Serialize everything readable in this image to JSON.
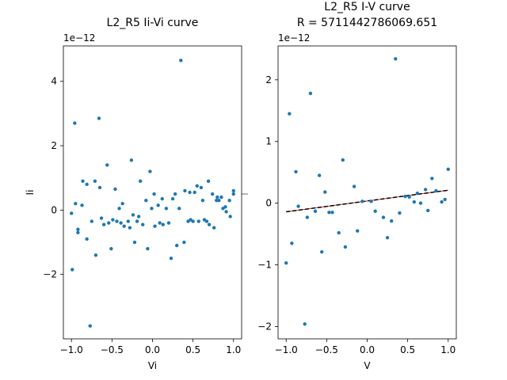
{
  "chart_data": [
    {
      "type": "scatter",
      "title": "L2_R5 Ii-Vi curve",
      "xlabel": "Vi",
      "ylabel": "Ii",
      "y_offset_label": "1e−12",
      "xlim": [
        -1.1,
        1.1
      ],
      "ylim": [
        -4.0,
        5.1
      ],
      "x_ticks": [
        -1.0,
        -0.5,
        0.0,
        0.5,
        1.0
      ],
      "x_tick_labels": [
        "−1.0",
        "−0.5",
        "0.0",
        "0.5",
        "1.0"
      ],
      "y_ticks": [
        -2,
        0,
        2,
        4
      ],
      "y_tick_labels": [
        "−2",
        "0",
        "2",
        "4"
      ],
      "marker_color": "#1f77b4",
      "points": [
        [
          -1.0,
          -0.1
        ],
        [
          -0.99,
          -1.85
        ],
        [
          -0.96,
          2.7
        ],
        [
          -0.95,
          0.2
        ],
        [
          -0.92,
          -0.6
        ],
        [
          -0.92,
          -0.7
        ],
        [
          -0.87,
          0.15
        ],
        [
          -0.86,
          0.9
        ],
        [
          -0.81,
          0.8
        ],
        [
          -0.81,
          -0.9
        ],
        [
          -0.77,
          -3.6
        ],
        [
          -0.75,
          -0.35
        ],
        [
          -0.71,
          0.9
        ],
        [
          -0.7,
          -1.4
        ],
        [
          -0.66,
          2.85
        ],
        [
          -0.65,
          0.7
        ],
        [
          -0.63,
          -0.25
        ],
        [
          -0.6,
          -0.45
        ],
        [
          -0.56,
          1.4
        ],
        [
          -0.54,
          -0.4
        ],
        [
          -0.51,
          -1.2
        ],
        [
          -0.49,
          -0.3
        ],
        [
          -0.46,
          0.65
        ],
        [
          -0.44,
          -0.35
        ],
        [
          -0.41,
          0.05
        ],
        [
          -0.39,
          -0.4
        ],
        [
          -0.37,
          0.2
        ],
        [
          -0.35,
          -0.5
        ],
        [
          -0.3,
          -0.35
        ],
        [
          -0.28,
          -0.55
        ],
        [
          -0.26,
          1.55
        ],
        [
          -0.24,
          -0.15
        ],
        [
          -0.22,
          -1.0
        ],
        [
          -0.19,
          -0.35
        ],
        [
          -0.17,
          -0.2
        ],
        [
          -0.15,
          0.9
        ],
        [
          -0.12,
          -0.45
        ],
        [
          -0.08,
          0.3
        ],
        [
          -0.06,
          -1.2
        ],
        [
          -0.03,
          1.2
        ],
        [
          -0.01,
          0.05
        ],
        [
          0.02,
          0.5
        ],
        [
          0.03,
          -0.5
        ],
        [
          0.07,
          0.15
        ],
        [
          0.09,
          -0.4
        ],
        [
          0.12,
          0.35
        ],
        [
          0.13,
          -0.45
        ],
        [
          0.17,
          0.05
        ],
        [
          0.2,
          -0.4
        ],
        [
          0.23,
          -1.5
        ],
        [
          0.25,
          0.35
        ],
        [
          0.28,
          0.5
        ],
        [
          0.3,
          -1.1
        ],
        [
          0.33,
          0.05
        ],
        [
          0.35,
          4.65
        ],
        [
          0.39,
          -1.0
        ],
        [
          0.4,
          0.6
        ],
        [
          0.44,
          -0.35
        ],
        [
          0.46,
          0.55
        ],
        [
          0.47,
          -0.3
        ],
        [
          0.5,
          -0.35
        ],
        [
          0.52,
          0.55
        ],
        [
          0.55,
          0.75
        ],
        [
          0.57,
          -0.35
        ],
        [
          0.6,
          0.7
        ],
        [
          0.62,
          0.3
        ],
        [
          0.64,
          -0.3
        ],
        [
          0.67,
          -0.35
        ],
        [
          0.69,
          0.9
        ],
        [
          0.7,
          -0.45
        ],
        [
          0.74,
          0.5
        ],
        [
          0.76,
          -0.55
        ],
        [
          0.79,
          0.3
        ],
        [
          0.8,
          0.4
        ],
        [
          0.82,
          0.3
        ],
        [
          0.85,
          0.4
        ],
        [
          0.87,
          0.05
        ],
        [
          0.9,
          0.1
        ],
        [
          0.91,
          -0.05
        ],
        [
          0.95,
          0.3
        ],
        [
          0.96,
          -0.2
        ],
        [
          1.0,
          0.5
        ],
        [
          1.0,
          0.6
        ]
      ],
      "y_label_tick": true
    },
    {
      "type": "scatter",
      "title": "L2_R5 I-V curve",
      "subtitle": "R = 5711442786069.651",
      "xlabel": "V",
      "ylabel": "",
      "y_offset_label": "1e−12",
      "xlim": [
        -1.1,
        1.1
      ],
      "ylim": [
        -2.2,
        2.55
      ],
      "x_ticks": [
        -1.0,
        -0.5,
        0.0,
        0.5,
        1.0
      ],
      "x_tick_labels": [
        "−1.0",
        "−0.5",
        "0.0",
        "0.5",
        "1.0"
      ],
      "y_ticks": [
        -2,
        -1,
        0,
        1,
        2
      ],
      "y_tick_labels": [
        "−2",
        "−1",
        "0",
        "1",
        "2"
      ],
      "marker_color": "#1f77b4",
      "fit_line": {
        "x": [
          -1.0,
          1.0
        ],
        "y": [
          -0.14,
          0.21
        ],
        "color": "#000000",
        "style": "dashed"
      },
      "fit_line_underlay_color": "#d62728",
      "points": [
        [
          -1.0,
          -0.97
        ],
        [
          -0.96,
          1.45
        ],
        [
          -0.93,
          -0.65
        ],
        [
          -0.88,
          0.51
        ],
        [
          -0.85,
          -0.05
        ],
        [
          -0.77,
          -1.96
        ],
        [
          -0.74,
          -0.23
        ],
        [
          -0.7,
          1.78
        ],
        [
          -0.64,
          -0.13
        ],
        [
          -0.59,
          0.45
        ],
        [
          -0.56,
          -0.79
        ],
        [
          -0.52,
          0.18
        ],
        [
          -0.47,
          -0.15
        ],
        [
          -0.43,
          -0.15
        ],
        [
          -0.35,
          -0.48
        ],
        [
          -0.3,
          0.7
        ],
        [
          -0.27,
          -0.71
        ],
        [
          -0.16,
          0.27
        ],
        [
          -0.12,
          -0.45
        ],
        [
          -0.06,
          0.03
        ],
        [
          0.05,
          0.03
        ],
        [
          0.1,
          -0.13
        ],
        [
          0.2,
          -0.23
        ],
        [
          0.25,
          -0.56
        ],
        [
          0.3,
          -0.29
        ],
        [
          0.35,
          2.34
        ],
        [
          0.4,
          -0.16
        ],
        [
          0.47,
          0.11
        ],
        [
          0.52,
          0.1
        ],
        [
          0.58,
          0.02
        ],
        [
          0.62,
          0.16
        ],
        [
          0.66,
          0.0
        ],
        [
          0.72,
          0.22
        ],
        [
          0.75,
          -0.12
        ],
        [
          0.8,
          0.4
        ],
        [
          0.85,
          0.2
        ],
        [
          0.92,
          0.02
        ],
        [
          0.96,
          0.06
        ],
        [
          1.0,
          0.55
        ]
      ]
    }
  ]
}
